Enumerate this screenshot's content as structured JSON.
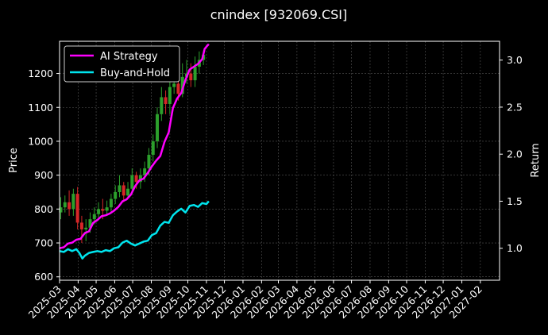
{
  "chart_data": {
    "type": "line",
    "title": "cnindex [932069.CSI]",
    "ylabel": "Price",
    "y2label": "Return",
    "ylim": [
      590,
      1295
    ],
    "y2lim": [
      0.66,
      3.2
    ],
    "yticks": [
      600,
      700,
      800,
      900,
      1000,
      1100,
      1200
    ],
    "y2ticks": [
      1.0,
      1.5,
      2.0,
      2.5,
      3.0
    ],
    "y2tick_labels": [
      "1.0",
      "1.5",
      "2.0",
      "2.5",
      "3.0"
    ],
    "xlim": [
      "2025-03-01",
      "2027-03-05"
    ],
    "xticks": [
      "2025-03",
      "2025-04",
      "2025-05",
      "2025-06",
      "2025-07",
      "2025-08",
      "2025-09",
      "2025-10",
      "2025-11",
      "2025-12",
      "2026-01",
      "2026-02",
      "2026-03",
      "2026-04",
      "2026-05",
      "2026-06",
      "2026-07",
      "2026-08",
      "2026-09",
      "2026-10",
      "2026-11",
      "2026-12",
      "2027-01",
      "2027-02"
    ],
    "grid": true,
    "legend_position": "top-left",
    "colors": {
      "up": "#2ca02c",
      "down": "#d62728",
      "strategy": "#ff00ff",
      "buyhold": "#00e5ee",
      "axes": "#ffffff",
      "grid": "#555555"
    },
    "candles": {
      "dates": [
        "2025-03-03",
        "2025-03-10",
        "2025-03-17",
        "2025-03-24",
        "2025-03-31",
        "2025-04-07",
        "2025-04-14",
        "2025-04-21",
        "2025-04-28",
        "2025-05-05",
        "2025-05-12",
        "2025-05-19",
        "2025-05-26",
        "2025-06-02",
        "2025-06-09",
        "2025-06-16",
        "2025-06-23",
        "2025-06-30",
        "2025-07-07",
        "2025-07-14",
        "2025-07-21",
        "2025-07-28",
        "2025-08-04",
        "2025-08-11",
        "2025-08-18",
        "2025-08-25",
        "2025-09-01",
        "2025-09-08",
        "2025-09-15",
        "2025-09-22",
        "2025-09-29",
        "2025-10-06",
        "2025-10-13",
        "2025-10-20",
        "2025-10-27"
      ],
      "open": [
        790,
        805,
        820,
        800,
        845,
        760,
        740,
        745,
        770,
        785,
        800,
        795,
        805,
        830,
        850,
        870,
        840,
        860,
        900,
        880,
        900,
        920,
        960,
        1000,
        1080,
        1130,
        1110,
        1160,
        1170,
        1140,
        1190,
        1200,
        1180,
        1220,
        1240
      ],
      "close": [
        805,
        820,
        800,
        845,
        760,
        740,
        745,
        770,
        785,
        800,
        795,
        805,
        830,
        850,
        870,
        840,
        860,
        900,
        880,
        900,
        920,
        960,
        1000,
        1080,
        1130,
        1110,
        1160,
        1170,
        1140,
        1190,
        1200,
        1180,
        1220,
        1240,
        1255
      ],
      "high": [
        835,
        840,
        855,
        860,
        865,
        780,
        770,
        790,
        805,
        820,
        830,
        825,
        845,
        870,
        900,
        880,
        880,
        920,
        910,
        920,
        940,
        980,
        1020,
        1100,
        1160,
        1150,
        1200,
        1220,
        1190,
        1230,
        1240,
        1230,
        1250,
        1265,
        1268
      ],
      "low": [
        770,
        790,
        780,
        780,
        740,
        700,
        705,
        730,
        755,
        770,
        770,
        780,
        790,
        815,
        835,
        820,
        830,
        845,
        860,
        860,
        880,
        900,
        940,
        980,
        1060,
        1080,
        1080,
        1140,
        1120,
        1130,
        1170,
        1160,
        1160,
        1200,
        1225
      ]
    },
    "series": [
      {
        "name": "AI Strategy",
        "dates": [
          "2025-03-01",
          "2025-03-08",
          "2025-03-15",
          "2025-03-22",
          "2025-03-29",
          "2025-04-05",
          "2025-04-12",
          "2025-04-19",
          "2025-04-26",
          "2025-05-03",
          "2025-05-10",
          "2025-05-17",
          "2025-05-24",
          "2025-05-31",
          "2025-06-07",
          "2025-06-14",
          "2025-06-21",
          "2025-06-28",
          "2025-07-05",
          "2025-07-12",
          "2025-07-19",
          "2025-07-26",
          "2025-08-02",
          "2025-08-09",
          "2025-08-16",
          "2025-08-23",
          "2025-08-30",
          "2025-09-06",
          "2025-09-13",
          "2025-09-20",
          "2025-09-27",
          "2025-10-04",
          "2025-10-11",
          "2025-10-18",
          "2025-10-25",
          "2025-10-29",
          "2025-11-02",
          "2025-11-05"
        ],
        "values": [
          1.0,
          1.01,
          1.05,
          1.06,
          1.09,
          1.1,
          1.16,
          1.18,
          1.27,
          1.3,
          1.34,
          1.35,
          1.37,
          1.4,
          1.44,
          1.5,
          1.52,
          1.57,
          1.66,
          1.72,
          1.74,
          1.8,
          1.87,
          1.93,
          1.98,
          2.13,
          2.23,
          2.49,
          2.59,
          2.65,
          2.79,
          2.9,
          2.93,
          2.96,
          3.01,
          3.12,
          3.15,
          3.17
        ]
      },
      {
        "name": "Buy-and-Hold",
        "dates": [
          "2025-03-01",
          "2025-03-08",
          "2025-03-15",
          "2025-03-22",
          "2025-03-29",
          "2025-04-03",
          "2025-04-08",
          "2025-04-12",
          "2025-04-19",
          "2025-04-26",
          "2025-05-03",
          "2025-05-10",
          "2025-05-17",
          "2025-05-24",
          "2025-05-31",
          "2025-06-07",
          "2025-06-14",
          "2025-06-21",
          "2025-06-28",
          "2025-07-05",
          "2025-07-12",
          "2025-07-19",
          "2025-07-26",
          "2025-08-02",
          "2025-08-09",
          "2025-08-16",
          "2025-08-23",
          "2025-08-30",
          "2025-09-06",
          "2025-09-13",
          "2025-09-20",
          "2025-09-27",
          "2025-10-04",
          "2025-10-11",
          "2025-10-18",
          "2025-10-25",
          "2025-11-01",
          "2025-11-05"
        ],
        "values": [
          0.97,
          0.96,
          0.99,
          0.97,
          0.99,
          0.95,
          0.89,
          0.92,
          0.95,
          0.96,
          0.97,
          0.96,
          0.98,
          0.97,
          1.0,
          1.01,
          1.06,
          1.08,
          1.05,
          1.03,
          1.05,
          1.07,
          1.08,
          1.14,
          1.16,
          1.24,
          1.28,
          1.27,
          1.35,
          1.39,
          1.42,
          1.38,
          1.45,
          1.46,
          1.44,
          1.48,
          1.47,
          1.5
        ]
      }
    ]
  }
}
